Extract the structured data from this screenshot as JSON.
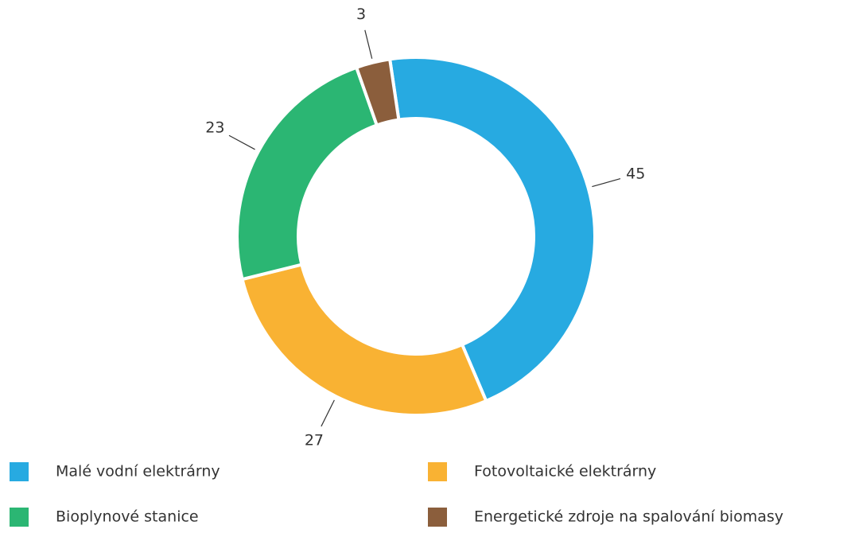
{
  "chart_data": {
    "type": "donut",
    "categories": [
      "Malé vodní elektrárny",
      "Fotovoltaické elektrárny",
      "Bioplynové stanice",
      "Energetické zdroje na spalování biomasy"
    ],
    "values": [
      45,
      27,
      23,
      3
    ],
    "colors": [
      "#27aae1",
      "#f9b233",
      "#2bb673",
      "#8b5e3c"
    ],
    "legend": "bottom"
  }
}
